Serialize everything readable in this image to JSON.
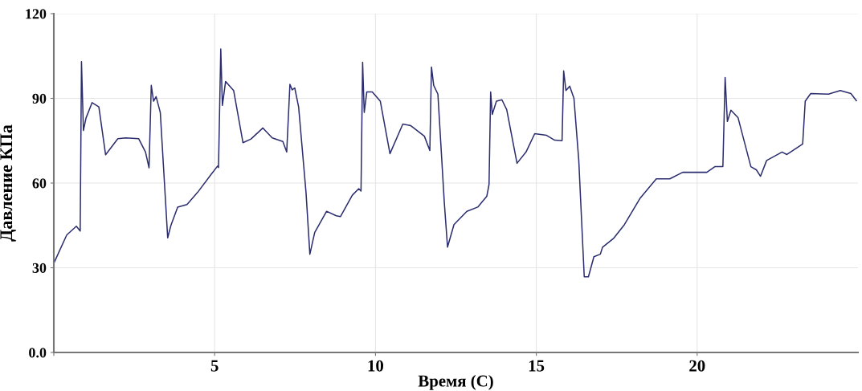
{
  "chart_data": {
    "type": "line",
    "xlabel": "Время (С)",
    "ylabel": "Давление КПа",
    "xlim": [
      0,
      25
    ],
    "ylim": [
      0,
      120
    ],
    "xticks": [
      {
        "value": 0,
        "label": null
      },
      5,
      10,
      15,
      20
    ],
    "yticks": [
      {
        "value": 0,
        "label": "0.0"
      },
      30,
      60,
      90,
      120
    ],
    "grid": true,
    "marker": "none",
    "line_style": "solid",
    "series": [
      {
        "color": "#2b2d6e",
        "x": [
          0,
          0.4,
          0.7,
          0.82,
          0.86,
          0.92,
          1.0,
          1.19,
          1.4,
          1.61,
          1.99,
          2.24,
          2.64,
          2.85,
          2.96,
          3.03,
          3.1,
          3.18,
          3.31,
          3.54,
          3.64,
          3.85,
          4.14,
          4.47,
          4.88,
          5.09,
          5.12,
          5.19,
          5.24,
          5.34,
          5.59,
          5.88,
          6.13,
          6.5,
          6.79,
          7.12,
          7.24,
          7.34,
          7.41,
          7.49,
          7.61,
          7.84,
          7.96,
          8.11,
          8.48,
          8.78,
          8.91,
          9.28,
          9.48,
          9.55,
          9.6,
          9.65,
          9.73,
          9.9,
          10.15,
          10.45,
          10.85,
          11.1,
          11.52,
          11.69,
          11.74,
          11.81,
          11.94,
          12.14,
          12.24,
          12.44,
          12.84,
          13.18,
          13.46,
          13.53,
          13.58,
          13.63,
          13.76,
          13.93,
          14.08,
          14.4,
          14.68,
          14.95,
          15.32,
          15.57,
          15.8,
          15.85,
          15.92,
          16.04,
          16.17,
          16.32,
          16.49,
          16.62,
          16.79,
          16.99,
          17.06,
          17.41,
          17.74,
          18.23,
          18.73,
          19.15,
          19.55,
          19.98,
          20.3,
          20.55,
          20.8,
          20.87,
          20.94,
          21.05,
          21.27,
          21.67,
          21.84,
          21.97,
          22.16,
          22.64,
          22.79,
          23.28,
          23.36,
          23.53,
          24.08,
          24.45,
          24.78,
          24.95
        ],
        "values": [
          31.6,
          41.6,
          44.7,
          43,
          103,
          78.6,
          83,
          88.5,
          87,
          70,
          75.7,
          76,
          75.7,
          71,
          65.4,
          94.6,
          89,
          90.6,
          85,
          40.6,
          45,
          51.5,
          52.4,
          56.7,
          62.9,
          66,
          65.5,
          107.5,
          87.5,
          96,
          92.8,
          74.3,
          75.6,
          79.5,
          76,
          74.7,
          71,
          95,
          93,
          93.7,
          87,
          56.7,
          34.8,
          42.5,
          50,
          48.4,
          48.1,
          55.7,
          58,
          57.2,
          102.8,
          85,
          92.3,
          92.3,
          89,
          70.4,
          80.9,
          80.3,
          76.6,
          71.5,
          101.1,
          94.6,
          91.5,
          53,
          37.3,
          45.3,
          50,
          51.5,
          55.3,
          59.5,
          92.3,
          84.3,
          89,
          89.5,
          86,
          67,
          71,
          77.5,
          76.9,
          75.2,
          75,
          99.7,
          92.8,
          94.3,
          90,
          68,
          26.8,
          26.8,
          33.9,
          34.8,
          37.3,
          40.5,
          45.3,
          54.7,
          61.5,
          61.5,
          63.8,
          63.8,
          63.8,
          65.8,
          65.8,
          97.4,
          81.8,
          85.8,
          83.2,
          65.8,
          64.7,
          62.4,
          68,
          71,
          70.1,
          73.8,
          89,
          91.7,
          91.5,
          92.8,
          91.7,
          89.2
        ]
      }
    ]
  }
}
